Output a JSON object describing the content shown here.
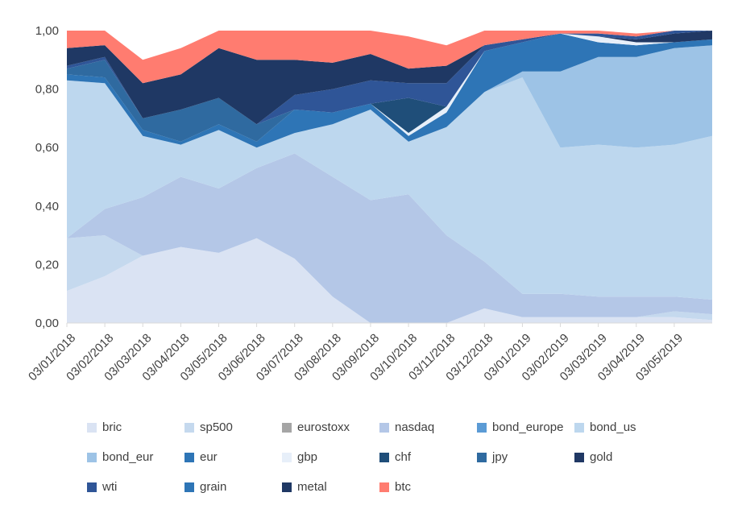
{
  "chart_data": {
    "type": "area",
    "stacked": true,
    "ylim": [
      0,
      1
    ],
    "yticks": [
      "0,00",
      "0,20",
      "0,40",
      "0,60",
      "0,80",
      "1,00"
    ],
    "ytick_values": [
      0,
      0.2,
      0.4,
      0.6,
      0.8,
      1.0
    ],
    "x_tick_labels": [
      "03/01/2018",
      "03/02/2018",
      "03/03/2018",
      "03/04/2018",
      "03/05/2018",
      "03/06/2018",
      "03/07/2018",
      "03/08/2018",
      "03/09/2018",
      "03/10/2018",
      "03/11/2018",
      "03/12/2018",
      "03/01/2019",
      "03/02/2019",
      "03/03/2019",
      "03/04/2019",
      "03/05/2019"
    ],
    "x_range": [
      "03/01/2018",
      "03/06/2019"
    ],
    "legend_position": "bottom",
    "x": [
      "03/01/2018",
      "03/02/2018",
      "03/03/2018",
      "03/04/2018",
      "03/05/2018",
      "03/06/2018",
      "03/07/2018",
      "03/08/2018",
      "03/09/2018",
      "03/10/2018",
      "03/11/2018",
      "03/12/2018",
      "03/01/2019",
      "03/02/2019",
      "03/03/2019",
      "03/04/2019",
      "03/05/2019",
      "03/06/2019"
    ],
    "series": [
      {
        "name": "bric",
        "color": "#dae3f3",
        "values": [
          0.11,
          0.16,
          0.23,
          0.26,
          0.24,
          0.29,
          0.22,
          0.09,
          0.0,
          0.0,
          0.0,
          0.05,
          0.02,
          0.02,
          0.02,
          0.02,
          0.02,
          0.01
        ]
      },
      {
        "name": "sp500",
        "color": "#c5d9ee",
        "values": [
          0.18,
          0.14,
          0.0,
          0.0,
          0.0,
          0.0,
          0.0,
          0.0,
          0.0,
          0.0,
          0.0,
          0.0,
          0.0,
          0.0,
          0.0,
          0.0,
          0.02,
          0.02
        ]
      },
      {
        "name": "eurostoxx",
        "color": "#a5a5a5",
        "values": [
          0,
          0,
          0,
          0,
          0,
          0,
          0,
          0,
          0,
          0,
          0,
          0,
          0,
          0,
          0,
          0,
          0,
          0
        ]
      },
      {
        "name": "nasdaq",
        "color": "#b4c7e7",
        "values": [
          0.0,
          0.09,
          0.2,
          0.24,
          0.22,
          0.24,
          0.36,
          0.41,
          0.42,
          0.44,
          0.3,
          0.16,
          0.08,
          0.08,
          0.07,
          0.07,
          0.05,
          0.05
        ]
      },
      {
        "name": "bond_europe",
        "color": "#5b9bd5",
        "values": [
          0,
          0,
          0,
          0,
          0,
          0,
          0,
          0,
          0,
          0,
          0,
          0,
          0,
          0,
          0,
          0,
          0,
          0
        ]
      },
      {
        "name": "bond_us",
        "color": "#bdd7ee",
        "values": [
          0.54,
          0.43,
          0.21,
          0.11,
          0.2,
          0.07,
          0.07,
          0.18,
          0.31,
          0.18,
          0.37,
          0.58,
          0.74,
          0.5,
          0.52,
          0.51,
          0.52,
          0.56
        ]
      },
      {
        "name": "bond_eur",
        "color": "#9dc3e6",
        "values": [
          0,
          0,
          0,
          0,
          0,
          0,
          0,
          0,
          0,
          0,
          0,
          0,
          0.02,
          0.26,
          0.3,
          0.31,
          0.33,
          0.31
        ]
      },
      {
        "name": "eur",
        "color": "#2e75b6",
        "values": [
          0.02,
          0.02,
          0.02,
          0.01,
          0.02,
          0.02,
          0.08,
          0.04,
          0.02,
          0.02,
          0.05,
          0.14,
          0.1,
          0.13,
          0.05,
          0.04,
          0.02,
          0.02
        ]
      },
      {
        "name": "gbp",
        "color": "#e7eff9",
        "values": [
          0,
          0,
          0,
          0,
          0,
          0,
          0,
          0,
          0,
          0.01,
          0.02,
          0,
          0,
          0,
          0.02,
          0.01,
          0,
          0
        ]
      },
      {
        "name": "chf",
        "color": "#1f4e79",
        "values": [
          0,
          0,
          0,
          0,
          0,
          0,
          0,
          0,
          0,
          0.12,
          0.0,
          0,
          0,
          0,
          0,
          0,
          0,
          0
        ]
      },
      {
        "name": "jpy",
        "color": "#2f6aa0",
        "values": [
          0.02,
          0.06,
          0.04,
          0.11,
          0.09,
          0.06,
          0.0,
          0.0,
          0.0,
          0.0,
          0.0,
          0,
          0,
          0,
          0,
          0,
          0,
          0
        ]
      },
      {
        "name": "gold",
        "color": "#203864",
        "values": [
          0,
          0,
          0,
          0,
          0,
          0,
          0,
          0,
          0,
          0,
          0,
          0,
          0,
          0,
          0,
          0.01,
          0.03,
          0.03
        ]
      },
      {
        "name": "wti",
        "color": "#2f5597",
        "values": [
          0.01,
          0.01,
          0.0,
          0.0,
          0.0,
          0.0,
          0.05,
          0.08,
          0.08,
          0.05,
          0.08,
          0.02,
          0.01,
          0.0,
          0.01,
          0.01,
          0.01,
          0.0
        ]
      },
      {
        "name": "grain",
        "color": "#2e75b6",
        "values": [
          0,
          0,
          0,
          0,
          0,
          0,
          0,
          0,
          0,
          0,
          0,
          0,
          0,
          0,
          0,
          0,
          0,
          0
        ]
      },
      {
        "name": "metal",
        "color": "#1f3864",
        "values": [
          0.06,
          0.04,
          0.12,
          0.12,
          0.17,
          0.22,
          0.12,
          0.09,
          0.09,
          0.05,
          0.06,
          0.0,
          0.0,
          0.0,
          0.0,
          0.0,
          0.0,
          0.0
        ]
      },
      {
        "name": "btc",
        "color": "#ff7c70",
        "values": [
          0.06,
          0.05,
          0.08,
          0.09,
          0.07,
          0.1,
          0.1,
          0.11,
          0.08,
          0.11,
          0.07,
          0.05,
          0.03,
          0.01,
          0.01,
          0.01,
          0.01,
          0.01
        ]
      }
    ]
  }
}
